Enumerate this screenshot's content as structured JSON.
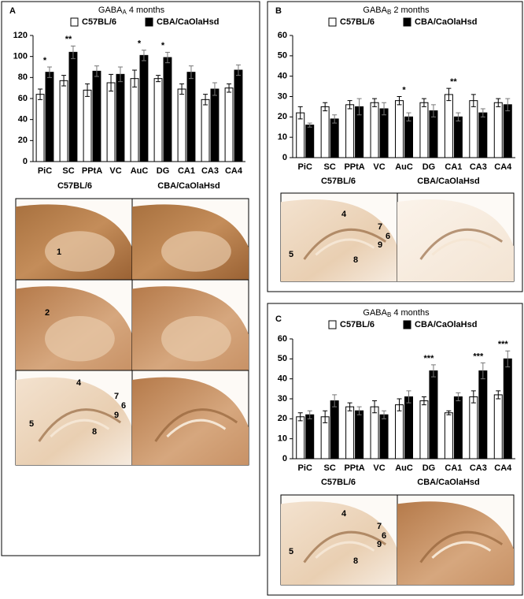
{
  "chart_data": [
    {
      "type": "bar",
      "title": "GABA",
      "title_subscript": "A",
      "title_suffix": "4 months",
      "categories": [
        "PiC",
        "SC",
        "PPtA",
        "VC",
        "AuC",
        "DG",
        "CA1",
        "CA3",
        "CA4"
      ],
      "series": [
        {
          "name": "C57BL/6",
          "color": "#ffffff",
          "values": [
            64,
            77,
            68,
            75,
            79,
            79,
            69,
            59,
            70
          ],
          "errors": [
            5,
            5,
            6,
            8,
            8,
            3,
            5,
            5,
            4
          ]
        },
        {
          "name": "CBA/CaOlaHsd",
          "color": "#000000",
          "values": [
            85,
            104,
            86,
            83,
            101,
            99,
            85,
            69,
            87
          ],
          "errors": [
            5,
            6,
            5,
            7,
            5,
            5,
            6,
            6,
            5
          ]
        }
      ],
      "significance": [
        "*",
        "**",
        null,
        null,
        "*",
        "*",
        null,
        null,
        null
      ],
      "ylim": [
        0,
        120
      ],
      "yticks": [
        0,
        20,
        40,
        60,
        80,
        100,
        120
      ]
    },
    {
      "type": "bar",
      "title": "GABA",
      "title_subscript": "B",
      "title_suffix": "2 months",
      "categories": [
        "PiC",
        "SC",
        "PPtA",
        "VC",
        "AuC",
        "DG",
        "CA1",
        "CA3",
        "CA4"
      ],
      "series": [
        {
          "name": "C57BL/6",
          "color": "#ffffff",
          "values": [
            22,
            25,
            26,
            27,
            28,
            27,
            31,
            28,
            27
          ],
          "errors": [
            3,
            2,
            2,
            2,
            2,
            2,
            3,
            3,
            2
          ]
        },
        {
          "name": "CBA/CaOlaHsd",
          "color": "#000000",
          "values": [
            16,
            19,
            25,
            24,
            20,
            23,
            20,
            22,
            26
          ],
          "errors": [
            1,
            2,
            4,
            3,
            2,
            3,
            2,
            2,
            3
          ]
        }
      ],
      "significance": [
        null,
        null,
        null,
        null,
        "*",
        null,
        "**",
        null,
        null
      ],
      "ylim": [
        0,
        60
      ],
      "yticks": [
        0,
        10,
        20,
        30,
        40,
        50,
        60
      ]
    },
    {
      "type": "bar",
      "title": "GABA",
      "title_subscript": "B",
      "title_suffix": "4 months",
      "categories": [
        "PiC",
        "SC",
        "PPtA",
        "VC",
        "AuC",
        "DG",
        "CA1",
        "CA3",
        "CA4"
      ],
      "series": [
        {
          "name": "C57BL/6",
          "color": "#ffffff",
          "values": [
            21,
            21,
            26,
            26,
            27,
            29,
            23,
            31,
            32
          ],
          "errors": [
            2,
            3,
            2,
            3,
            3,
            2,
            1,
            3,
            2
          ]
        },
        {
          "name": "CBA/CaOlaHsd",
          "color": "#000000",
          "values": [
            22,
            29,
            24,
            22,
            31,
            44,
            31,
            44,
            50
          ],
          "errors": [
            2,
            3,
            2,
            2,
            3,
            3,
            2,
            4,
            4
          ]
        }
      ],
      "significance": [
        null,
        null,
        null,
        null,
        null,
        "***",
        null,
        "***",
        "***"
      ],
      "ylim": [
        0,
        60
      ],
      "yticks": [
        0,
        10,
        20,
        30,
        40,
        50,
        60
      ]
    }
  ],
  "panels": [
    {
      "letter": "A",
      "strains": [
        "C57BL/6",
        "CBA/CaOlaHsd"
      ],
      "image_labels": [
        "1",
        "2",
        "4",
        "7",
        "6",
        "9",
        "5",
        "8"
      ]
    },
    {
      "letter": "B",
      "strains": [
        "C57BL/6",
        "CBA/CaOlaHsd"
      ],
      "image_labels": [
        "4",
        "7",
        "6",
        "9",
        "5",
        "8"
      ]
    },
    {
      "letter": "C",
      "strains": [
        "C57BL/6",
        "CBA/CaOlaHsd"
      ],
      "image_labels": [
        "4",
        "7",
        "6",
        "9",
        "5",
        "8"
      ]
    }
  ]
}
